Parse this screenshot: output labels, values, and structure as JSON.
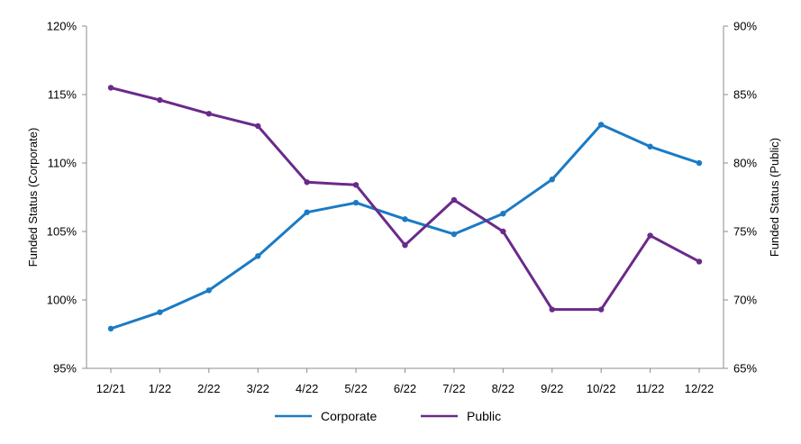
{
  "chart_data": {
    "type": "line",
    "categories": [
      "12/21",
      "1/22",
      "2/22",
      "3/22",
      "4/22",
      "5/22",
      "6/22",
      "7/22",
      "8/22",
      "9/22",
      "10/22",
      "11/22",
      "12/22"
    ],
    "series": [
      {
        "name": "Corporate",
        "axis": "left",
        "color": "#1a7bc4",
        "values": [
          97.9,
          99.1,
          100.7,
          103.2,
          106.4,
          107.1,
          105.9,
          104.8,
          106.3,
          108.8,
          112.8,
          111.2,
          110.0
        ]
      },
      {
        "name": "Public",
        "axis": "right",
        "color": "#6a2a8a",
        "values": [
          85.5,
          84.6,
          83.6,
          82.7,
          78.6,
          78.4,
          74.0,
          77.3,
          75.0,
          69.3,
          69.3,
          74.7,
          72.8
        ]
      }
    ],
    "y_left": {
      "label": "Funded Status (Corporate)",
      "lim": [
        95,
        120
      ],
      "ticks": [
        "95%",
        "100%",
        "105%",
        "110%",
        "115%",
        "120%"
      ]
    },
    "y_right": {
      "label": "Funded Status (Public)",
      "lim": [
        65,
        90
      ],
      "ticks": [
        "65%",
        "70%",
        "75%",
        "80%",
        "85%",
        "90%"
      ]
    },
    "legend_position": "bottom-center",
    "grid": false
  }
}
